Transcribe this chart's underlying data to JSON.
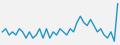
{
  "values": [
    5,
    6,
    4,
    5,
    4,
    6,
    5,
    3,
    5,
    3,
    4,
    6,
    3,
    6,
    3,
    5,
    4,
    6,
    5,
    4,
    6,
    5,
    8,
    10,
    8,
    7,
    9,
    7,
    5,
    6,
    4,
    3,
    5,
    2,
    14
  ],
  "line_color": "#2196c8",
  "background_color": "#f2f2f2",
  "linewidth": 1.0
}
